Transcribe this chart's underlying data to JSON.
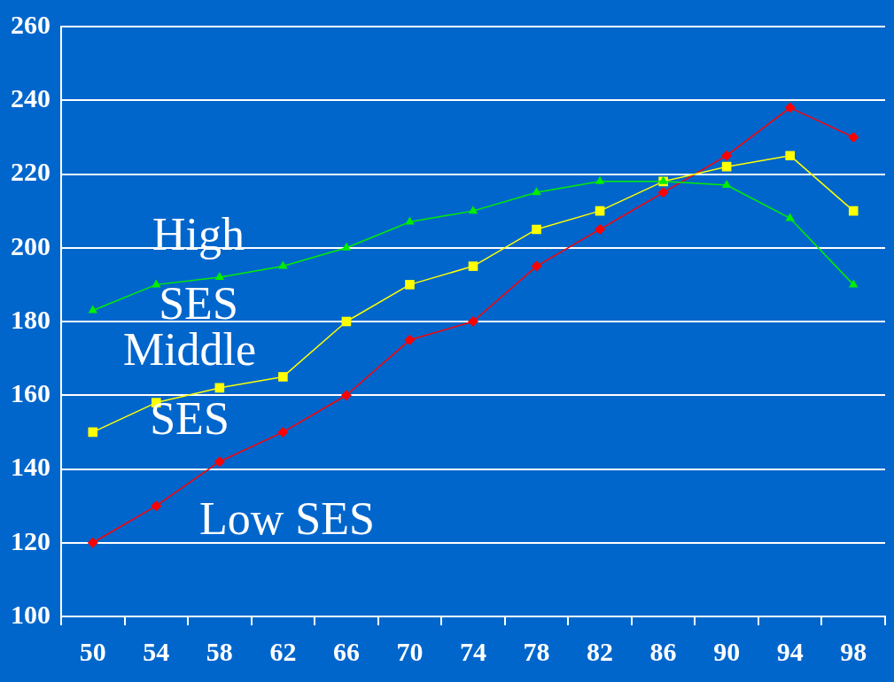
{
  "chart_data": {
    "type": "line",
    "categories": [
      "50",
      "54",
      "58",
      "62",
      "66",
      "70",
      "74",
      "78",
      "82",
      "86",
      "90",
      "94",
      "98"
    ],
    "series": [
      {
        "name": "High SES",
        "color": "#00ee00",
        "marker": "triangle",
        "values": [
          183,
          190,
          192,
          195,
          200,
          207,
          210,
          215,
          218,
          218,
          217,
          208,
          190
        ]
      },
      {
        "name": "Middle SES",
        "color": "#ffff00",
        "marker": "square",
        "values": [
          150,
          158,
          162,
          165,
          180,
          190,
          195,
          205,
          210,
          218,
          222,
          225,
          210
        ]
      },
      {
        "name": "Low SES",
        "color": "#ff0000",
        "marker": "diamond",
        "values": [
          120,
          130,
          142,
          150,
          160,
          175,
          180,
          195,
          205,
          215,
          225,
          238,
          230
        ]
      }
    ],
    "ylim": [
      100,
      260
    ],
    "yticks": [
      100,
      120,
      140,
      160,
      180,
      200,
      220,
      240,
      260
    ],
    "grid": "y",
    "legend": false,
    "line_style": "solid"
  }
}
